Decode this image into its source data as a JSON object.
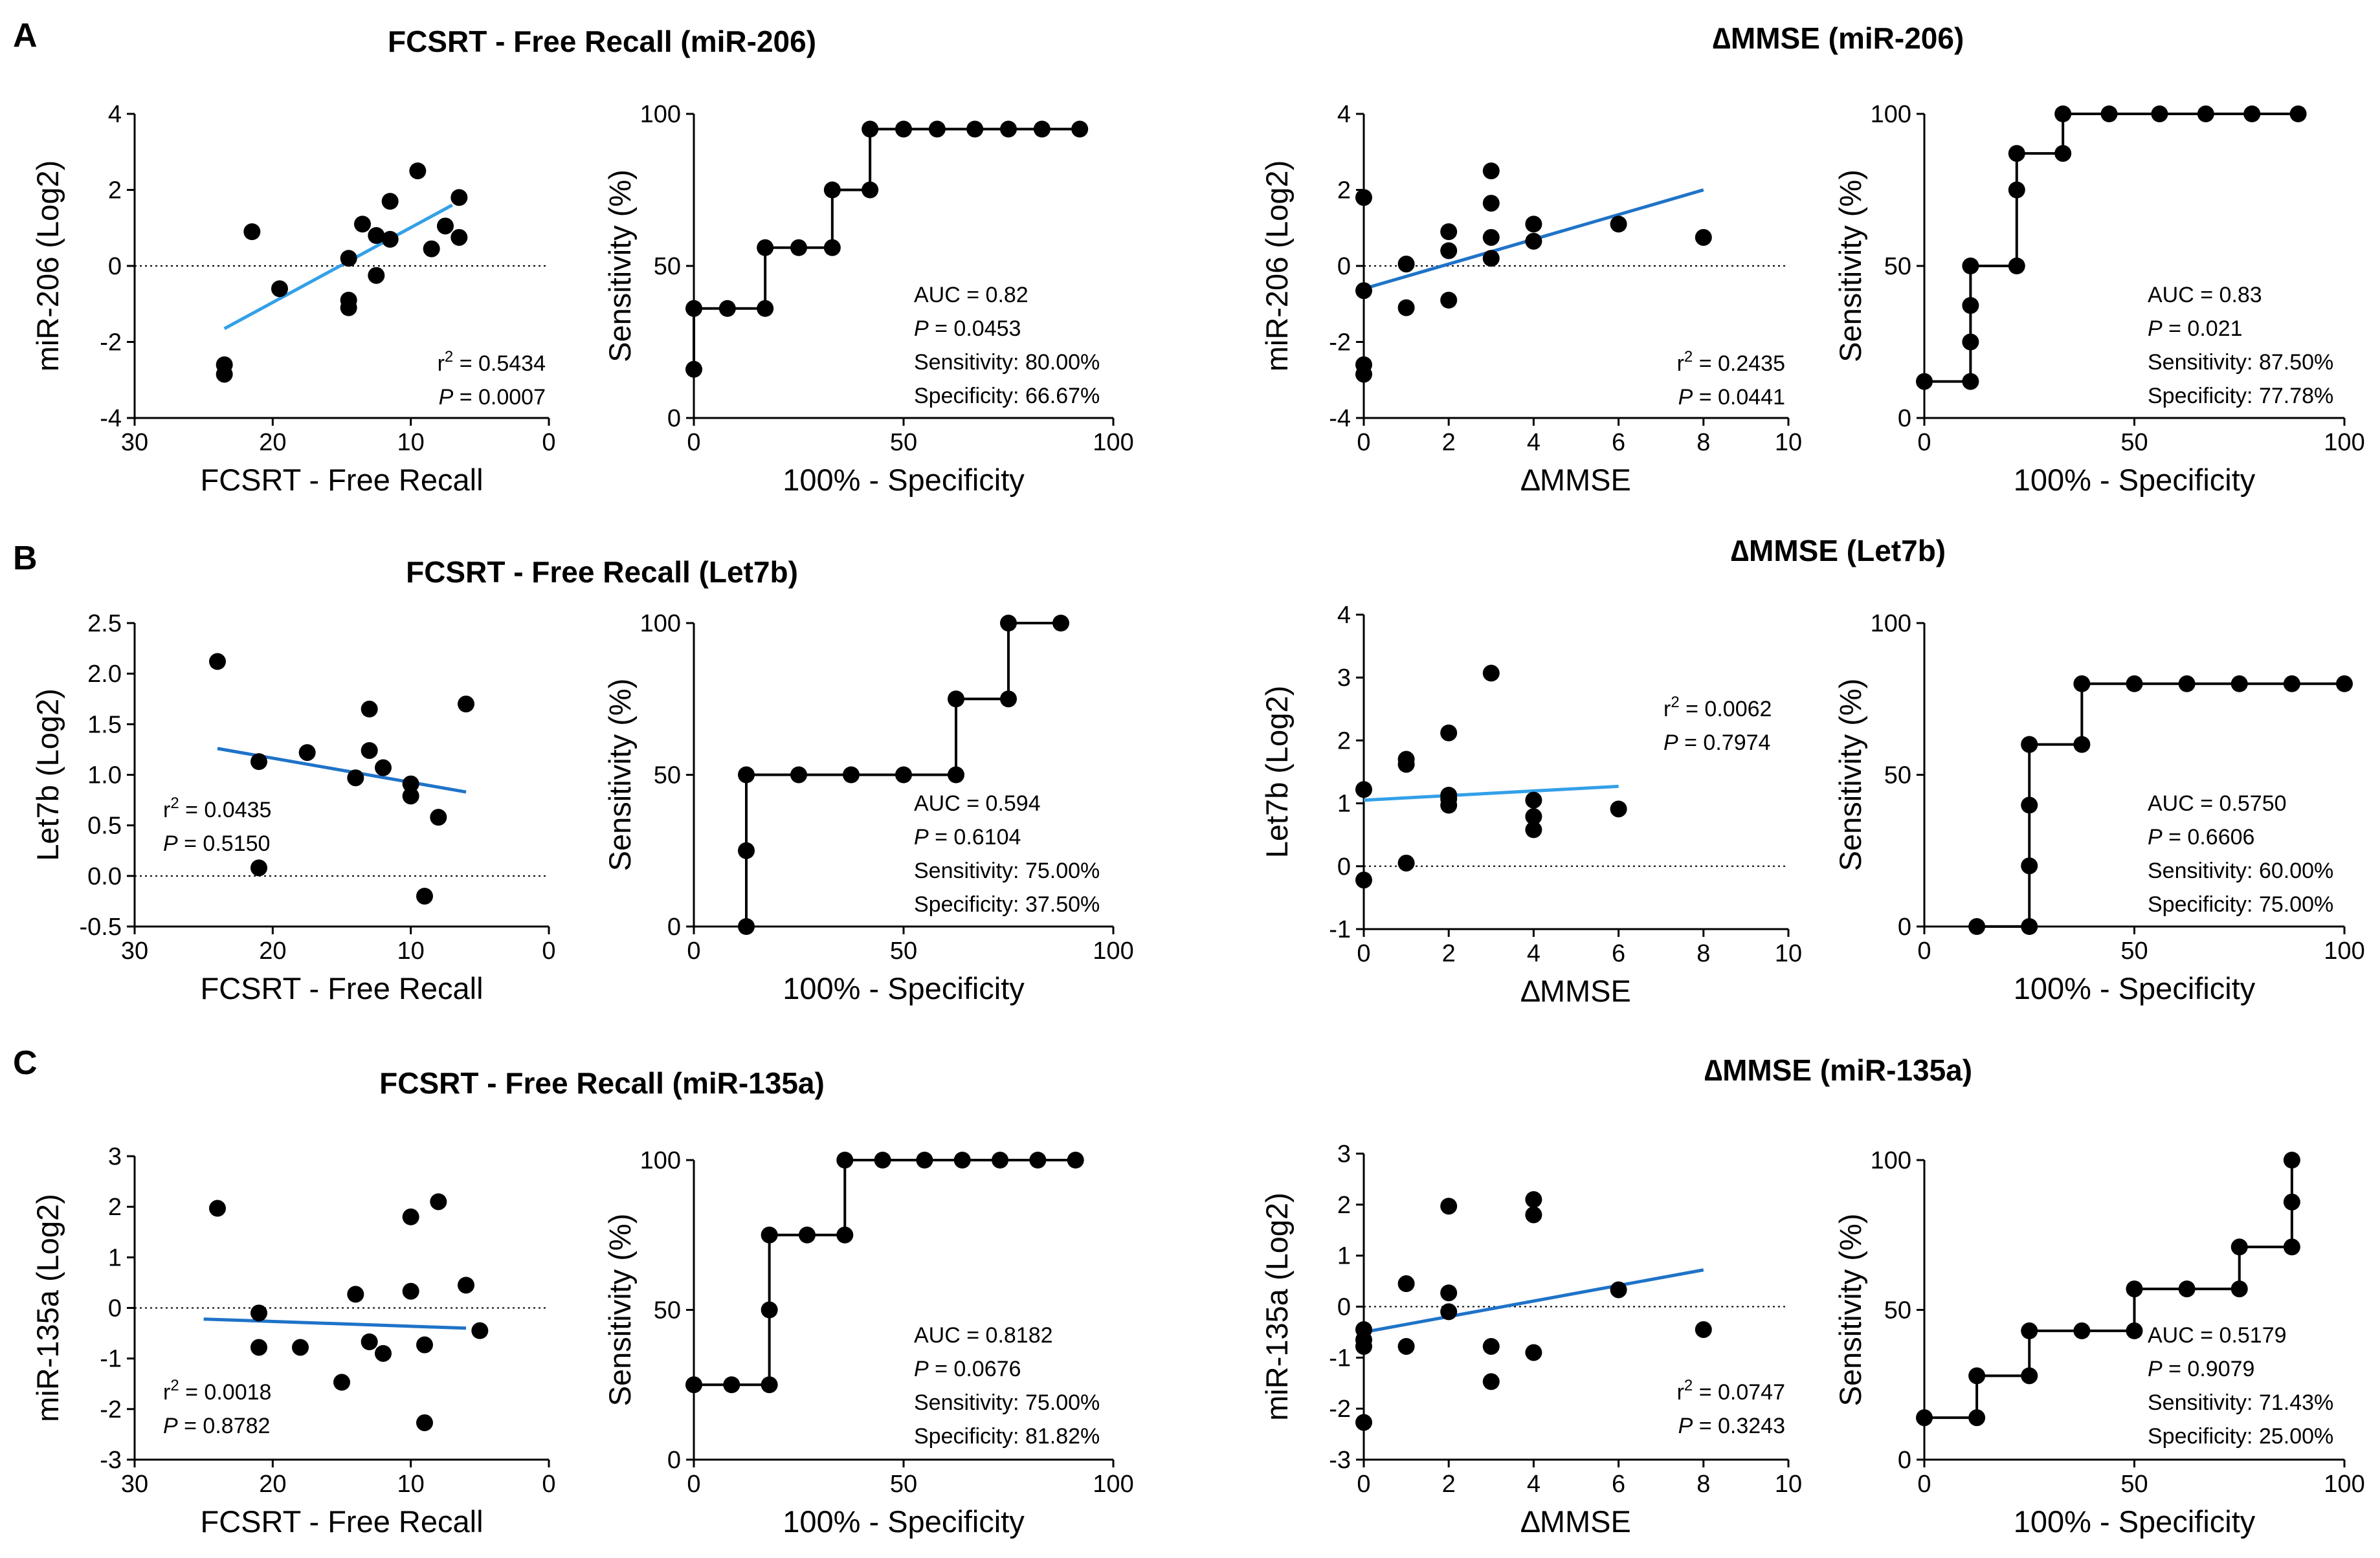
{
  "panel_labels": [
    "A",
    "B",
    "C"
  ],
  "section_titles": {
    "a_left": "FCSRT - Free Recall (miR-206)",
    "a_right": "∆MMSE (miR-206)",
    "b_left": "FCSRT - Free Recall (Let7b)",
    "b_right": "∆MMSE (Let7b)",
    "c_left": "FCSRT - Free Recall (miR-135a)",
    "c_right": "∆MMSE (miR-135a)"
  },
  "colors": {
    "regression_dark": "#1f73c8",
    "regression_light": "#33a0e8",
    "points": "#000000"
  },
  "chart_data": [
    {
      "type": "scatter",
      "id": "a1",
      "xlabel": "FCSRT - Free Recall",
      "ylabel": "miR-206 (Log2)",
      "xlim": [
        30,
        0
      ],
      "ylim": [
        -4,
        4
      ],
      "xticks": [
        30,
        20,
        10,
        0
      ],
      "yticks": [
        -4,
        -2,
        0,
        2,
        4
      ],
      "x_reversed": true,
      "points": [
        [
          23.5,
          -2.6
        ],
        [
          23.5,
          -2.85
        ],
        [
          21.5,
          0.9
        ],
        [
          19.5,
          -0.6
        ],
        [
          14.5,
          -0.9
        ],
        [
          14.5,
          -1.1
        ],
        [
          14.5,
          0.2
        ],
        [
          13.5,
          1.1
        ],
        [
          12.5,
          -0.25
        ],
        [
          12.5,
          0.8
        ],
        [
          11.5,
          1.7
        ],
        [
          11.5,
          0.7
        ],
        [
          9.5,
          2.5
        ],
        [
          8.5,
          0.45
        ],
        [
          7.5,
          1.05
        ],
        [
          6.5,
          1.8
        ],
        [
          6.5,
          0.75
        ]
      ],
      "fit_line": [
        [
          23.5,
          -1.65
        ],
        [
          7,
          1.6
        ]
      ],
      "fit_color": "light",
      "stats": {
        "r2_label": "r",
        "r2_sup": "2",
        "r2_value": " = 0.5434",
        "p_label": "P",
        "p_value": " = 0.0007"
      }
    },
    {
      "type": "line",
      "step": true,
      "id": "a2",
      "xlabel": "100% - Specificity",
      "ylabel": "Sensitivity (%)",
      "xlim": [
        0,
        100
      ],
      "ylim": [
        0,
        100
      ],
      "xticks": [
        0,
        50,
        100
      ],
      "yticks": [
        0,
        50,
        100
      ],
      "x": [
        0,
        0,
        8,
        17,
        17,
        25,
        33,
        33,
        42,
        42,
        50,
        58,
        67,
        75,
        83,
        92
      ],
      "y": [
        16,
        36,
        36,
        36,
        56,
        56,
        56,
        75,
        75,
        95,
        95,
        95,
        95,
        95,
        95,
        95
      ],
      "stats": {
        "auc": "AUC = 0.82",
        "p_label": "P",
        "p_value": " = 0.0453",
        "sensitivity": "Sensitivity: 80.00%",
        "specificity": "Specificity: 66.67%"
      }
    },
    {
      "type": "scatter",
      "id": "a3",
      "xlabel": "∆MMSE",
      "ylabel": "miR-206 (Log2)",
      "xlim": [
        0,
        10
      ],
      "ylim": [
        -4,
        4
      ],
      "xticks": [
        0,
        2,
        4,
        6,
        8,
        10
      ],
      "yticks": [
        -4,
        -2,
        0,
        2,
        4
      ],
      "x_reversed": false,
      "points": [
        [
          0,
          1.8
        ],
        [
          0,
          -0.65
        ],
        [
          0,
          -2.6
        ],
        [
          0,
          -2.85
        ],
        [
          1,
          0.05
        ],
        [
          1,
          -1.1
        ],
        [
          2,
          0.9
        ],
        [
          2,
          0.4
        ],
        [
          2,
          -0.9
        ],
        [
          3,
          2.5
        ],
        [
          3,
          1.65
        ],
        [
          3,
          0.75
        ],
        [
          3,
          0.2
        ],
        [
          4,
          1.1
        ],
        [
          4,
          0.65
        ],
        [
          6,
          1.1
        ],
        [
          8,
          0.75
        ]
      ],
      "fit_line": [
        [
          0,
          -0.6
        ],
        [
          8,
          2.0
        ]
      ],
      "fit_color": "dark",
      "stats": {
        "r2_label": "r",
        "r2_sup": "2",
        "r2_value": " = 0.2435",
        "p_label": "P",
        "p_value": " = 0.0441"
      }
    },
    {
      "type": "line",
      "step": true,
      "id": "a4",
      "xlabel": "100% - Specificity",
      "ylabel": "Sensitivity (%)",
      "xlim": [
        0,
        100
      ],
      "ylim": [
        0,
        100
      ],
      "xticks": [
        0,
        50,
        100
      ],
      "yticks": [
        0,
        50,
        100
      ],
      "x": [
        0,
        11,
        11,
        11,
        11,
        22,
        22,
        22,
        33,
        33,
        44,
        56,
        67,
        78,
        89
      ],
      "y": [
        12,
        12,
        25,
        37,
        50,
        50,
        75,
        87,
        87,
        100,
        100,
        100,
        100,
        100,
        100
      ],
      "stats": {
        "auc": "AUC = 0.83",
        "p_label": "P",
        "p_value": " = 0.021",
        "sensitivity": "Sensitivity: 87.50%",
        "specificity": "Specificity: 77.78%"
      }
    },
    {
      "type": "scatter",
      "id": "b1",
      "xlabel": "FCSRT - Free Recall",
      "ylabel": "Let7b (Log2)",
      "xlim": [
        30,
        0
      ],
      "ylim": [
        -0.5,
        2.5
      ],
      "xticks": [
        30,
        20,
        10,
        0
      ],
      "yticks": [
        -0.5,
        0.0,
        0.5,
        1.0,
        1.5,
        2.0,
        2.5
      ],
      "ytick_labels": [
        "-0.5",
        "0.0",
        "0.5",
        "1.0",
        "1.5",
        "2.0",
        "2.5"
      ],
      "x_reversed": true,
      "points": [
        [
          24,
          2.12
        ],
        [
          21,
          1.13
        ],
        [
          21,
          0.08
        ],
        [
          17.5,
          1.22
        ],
        [
          14,
          0.97
        ],
        [
          13,
          1.65
        ],
        [
          13,
          1.24
        ],
        [
          12,
          1.07
        ],
        [
          10,
          0.91
        ],
        [
          10,
          0.79
        ],
        [
          9,
          -0.2
        ],
        [
          8,
          0.58
        ],
        [
          6,
          1.7
        ]
      ],
      "fit_line": [
        [
          24,
          1.26
        ],
        [
          6,
          0.83
        ]
      ],
      "fit_color": "dark",
      "stats": {
        "r2_label": "r",
        "r2_sup": "2",
        "r2_value": " = 0.0435",
        "p_label": "P",
        "p_value": " = 0.5150"
      }
    },
    {
      "type": "line",
      "step": true,
      "id": "b2",
      "xlabel": "100% - Specificity",
      "ylabel": "Sensitivity (%)",
      "xlim": [
        0,
        100
      ],
      "ylim": [
        0,
        100
      ],
      "xticks": [
        0,
        50,
        100
      ],
      "yticks": [
        0,
        50,
        100
      ],
      "x": [
        12.5,
        12.5,
        12.5,
        25,
        37.5,
        50,
        62.5,
        62.5,
        75,
        75,
        87.5
      ],
      "y": [
        0,
        25,
        50,
        50,
        50,
        50,
        50,
        75,
        75,
        100,
        100
      ],
      "stats": {
        "auc": "AUC = 0.594",
        "p_label": "P",
        "p_value": " = 0.6104",
        "sensitivity": "Sensitivity: 75.00%",
        "specificity": "Specificity: 37.50%"
      }
    },
    {
      "type": "scatter",
      "id": "b3",
      "xlabel": "∆MMSE",
      "ylabel": "Let7b (Log2)",
      "xlim": [
        0,
        10
      ],
      "ylim": [
        -1,
        4
      ],
      "xticks": [
        0,
        2,
        4,
        6,
        8,
        10
      ],
      "yticks": [
        -1,
        0,
        1,
        2,
        3,
        4
      ],
      "x_reversed": false,
      "points": [
        [
          0,
          1.22
        ],
        [
          0,
          -0.22
        ],
        [
          1,
          1.7
        ],
        [
          1,
          1.62
        ],
        [
          1,
          0.05
        ],
        [
          2,
          2.12
        ],
        [
          2,
          1.13
        ],
        [
          2,
          1.07
        ],
        [
          2,
          0.97
        ],
        [
          3,
          3.07
        ],
        [
          4,
          1.05
        ],
        [
          4,
          0.79
        ],
        [
          4,
          0.58
        ],
        [
          6,
          0.91
        ]
      ],
      "fit_line": [
        [
          0,
          1.05
        ],
        [
          6,
          1.27
        ]
      ],
      "fit_color": "light",
      "stats": {
        "r2_label": "r",
        "r2_sup": "2",
        "r2_value": " = 0.0062",
        "p_label": "P",
        "p_value": " = 0.7974"
      }
    },
    {
      "type": "line",
      "step": true,
      "id": "b4",
      "xlabel": "100% - Specificity",
      "ylabel": "Sensitivity (%)",
      "xlim": [
        0,
        100
      ],
      "ylim": [
        0,
        100
      ],
      "xticks": [
        0,
        50,
        100
      ],
      "yticks": [
        0,
        50,
        100
      ],
      "x": [
        12.5,
        25,
        25,
        25,
        25,
        25,
        37.5,
        37.5,
        50,
        62.5,
        75,
        87.5,
        100
      ],
      "y": [
        0,
        0,
        20,
        40,
        60,
        60,
        60,
        80,
        80,
        80,
        80,
        80,
        80
      ],
      "stats": {
        "auc": "AUC = 0.5750",
        "p_label": "P",
        "p_value": " = 0.6606",
        "sensitivity": "Sensitivity: 60.00%",
        "specificity": "Specificity: 75.00%"
      }
    },
    {
      "type": "scatter",
      "id": "c1",
      "xlabel": "FCSRT - Free Recall",
      "ylabel": "miR-135a (Log2)",
      "xlim": [
        30,
        0
      ],
      "ylim": [
        -3,
        3
      ],
      "xticks": [
        30,
        20,
        10,
        0
      ],
      "yticks": [
        -3,
        -2,
        -1,
        0,
        1,
        2,
        3
      ],
      "x_reversed": true,
      "points": [
        [
          24,
          1.97
        ],
        [
          21,
          -0.1
        ],
        [
          21,
          -0.78
        ],
        [
          18,
          -0.78
        ],
        [
          15,
          -1.47
        ],
        [
          14,
          0.27
        ],
        [
          13,
          -0.67
        ],
        [
          12,
          -0.9
        ],
        [
          10,
          1.8
        ],
        [
          10,
          0.33
        ],
        [
          9,
          -0.73
        ],
        [
          9,
          -2.27
        ],
        [
          8,
          2.1
        ],
        [
          6,
          0.45
        ],
        [
          5,
          -0.45
        ]
      ],
      "fit_line": [
        [
          25,
          -0.22
        ],
        [
          6,
          -0.4
        ]
      ],
      "fit_color": "dark",
      "stats": {
        "r2_label": "r",
        "r2_sup": "2",
        "r2_value": " = 0.0018",
        "p_label": "P",
        "p_value": " = 0.8782"
      }
    },
    {
      "type": "line",
      "step": true,
      "id": "c2",
      "xlabel": "100% - Specificity",
      "ylabel": "Sensitivity (%)",
      "xlim": [
        0,
        100
      ],
      "ylim": [
        0,
        100
      ],
      "xticks": [
        0,
        50,
        100
      ],
      "yticks": [
        0,
        50,
        100
      ],
      "x": [
        0,
        9,
        18,
        18,
        18,
        27,
        36,
        36,
        45,
        55,
        64,
        73,
        82,
        91
      ],
      "y": [
        25,
        25,
        25,
        50,
        75,
        75,
        75,
        100,
        100,
        100,
        100,
        100,
        100,
        100
      ],
      "stats": {
        "auc": "AUC = 0.8182",
        "p_label": "P",
        "p_value": " = 0.0676",
        "sensitivity": "Sensitivity: 75.00%",
        "specificity": "Specificity: 81.82%"
      }
    },
    {
      "type": "scatter",
      "id": "c3",
      "xlabel": "∆MMSE",
      "ylabel": "miR-135a (Log2)",
      "xlim": [
        0,
        10
      ],
      "ylim": [
        -3,
        3
      ],
      "xticks": [
        0,
        2,
        4,
        6,
        8,
        10
      ],
      "yticks": [
        -3,
        -2,
        -1,
        0,
        1,
        2,
        3
      ],
      "x_reversed": false,
      "points": [
        [
          0,
          -0.45
        ],
        [
          0,
          -0.65
        ],
        [
          0,
          -0.78
        ],
        [
          0,
          -2.27
        ],
        [
          1,
          0.45
        ],
        [
          1,
          -0.78
        ],
        [
          2,
          1.97
        ],
        [
          2,
          0.27
        ],
        [
          2,
          -0.1
        ],
        [
          3,
          -0.78
        ],
        [
          3,
          -1.47
        ],
        [
          4,
          2.1
        ],
        [
          4,
          1.8
        ],
        [
          4,
          -0.9
        ],
        [
          6,
          0.33
        ],
        [
          8,
          -0.45
        ]
      ],
      "fit_line": [
        [
          0,
          -0.5
        ],
        [
          8,
          0.72
        ]
      ],
      "fit_color": "dark",
      "stats": {
        "r2_label": "r",
        "r2_sup": "2",
        "r2_value": " = 0.0747",
        "p_label": "P",
        "p_value": " = 0.3243"
      }
    },
    {
      "type": "line",
      "step": true,
      "id": "c4",
      "xlabel": "100% - Specificity",
      "ylabel": "Sensitivity (%)",
      "xlim": [
        0,
        100
      ],
      "ylim": [
        0,
        100
      ],
      "xticks": [
        0,
        50,
        100
      ],
      "yticks": [
        0,
        50,
        100
      ],
      "x": [
        0,
        12.5,
        12.5,
        25,
        25,
        37.5,
        50,
        50,
        62.5,
        75,
        75,
        87.5,
        87.5,
        87.5
      ],
      "y": [
        14,
        14,
        28,
        28,
        43,
        43,
        43,
        57,
        57,
        57,
        71,
        71,
        86,
        100
      ],
      "stats": {
        "auc": "AUC = 0.5179",
        "p_label": "P",
        "p_value": " = 0.9079",
        "sensitivity": "Sensitivity: 71.43%",
        "specificity": "Specificity: 25.00%"
      }
    }
  ]
}
